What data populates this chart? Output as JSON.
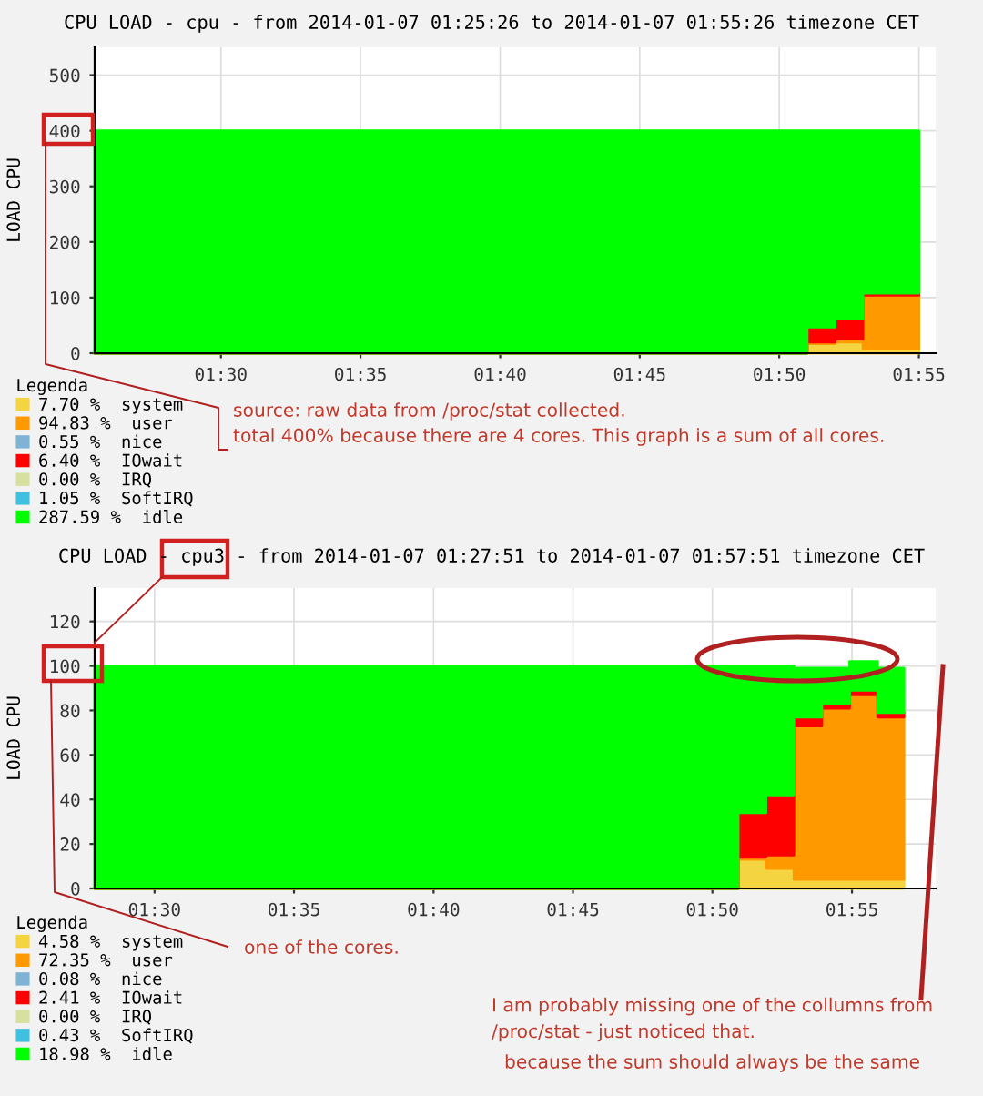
{
  "chart_data": [
    {
      "type": "area",
      "title": "CPU LOAD - cpu - from 2014-01-07 01:25:26 to 2014-01-07 01:55:26 timezone CET",
      "ylabel": "LOAD CPU",
      "legend_title": "Legenda",
      "stacked": true,
      "grid": true,
      "legend": "bottom left",
      "x": [
        1.4246,
        1.85,
        1.8667,
        1.8833,
        1.9167
      ],
      "xlim": [
        1.4246,
        1.9267
      ],
      "xticks": [
        {
          "value": 1.5,
          "label": "01:30"
        },
        {
          "value": 1.5833,
          "label": "01:35"
        },
        {
          "value": 1.6667,
          "label": "01:40"
        },
        {
          "value": 1.75,
          "label": "01:45"
        },
        {
          "value": 1.8333,
          "label": "01:50"
        },
        {
          "value": 1.9167,
          "label": "01:55"
        }
      ],
      "ylim": [
        0,
        550
      ],
      "yticks": [
        0,
        100,
        200,
        300,
        400,
        500
      ],
      "series": [
        {
          "name": "7.70 %  system",
          "color": "#f5d442",
          "values": [
            0,
            17,
            20,
            8,
            8
          ]
        },
        {
          "name": "94.83 %  user",
          "color": "#ff9900",
          "values": [
            0,
            3,
            5,
            96,
            96
          ]
        },
        {
          "name": "0.55 %  nice",
          "color": "#7fb3d5",
          "values": [
            null,
            null,
            null,
            null,
            null
          ]
        },
        {
          "name": "6.40 %  IOwait",
          "color": "#ff0000",
          "values": [
            0,
            27,
            36,
            4,
            4
          ]
        },
        {
          "name": "0.00 %  IRQ",
          "color": "#d8e0a0",
          "values": [
            null,
            null,
            null,
            null,
            null
          ]
        },
        {
          "name": "1.05 %  SoftIRQ",
          "color": "#40c0e0",
          "values": [
            null,
            null,
            null,
            null,
            null
          ]
        },
        {
          "name": "287.59 %  idle",
          "color": "#00ff00",
          "values": [
            400,
            353,
            339,
            292,
            292
          ]
        }
      ],
      "annotations": [
        "source: raw data from /proc/stat collected.",
        "total 400% because there are 4 cores. This graph is a sum of all cores."
      ]
    },
    {
      "type": "area",
      "title": "CPU LOAD - cpu3 - from 2014-01-07 01:27:51 to 2014-01-07 01:57:51 timezone CET",
      "ylabel": "LOAD CPU",
      "legend_title": "Legenda",
      "stacked": true,
      "grid": true,
      "legend": "bottom left",
      "x": [
        1.4642,
        1.8487,
        1.8653,
        1.882,
        1.8987,
        1.9153,
        1.932,
        1.9478
      ],
      "xlim": [
        1.4642,
        1.9667
      ],
      "xticks": [
        {
          "value": 1.5,
          "label": "01:30"
        },
        {
          "value": 1.5833,
          "label": "01:35"
        },
        {
          "value": 1.6667,
          "label": "01:40"
        },
        {
          "value": 1.75,
          "label": "01:45"
        },
        {
          "value": 1.8333,
          "label": "01:50"
        },
        {
          "value": 1.9167,
          "label": "01:55"
        }
      ],
      "ylim": [
        0,
        135
      ],
      "yticks": [
        0,
        20,
        40,
        60,
        80,
        100,
        120
      ],
      "series": [
        {
          "name": "4.58 %  system",
          "color": "#f5d442",
          "values": [
            0,
            13,
            9,
            4,
            4,
            4,
            4,
            4
          ]
        },
        {
          "name": "72.35 %  user",
          "color": "#ff9900",
          "values": [
            0,
            1,
            6,
            69,
            77,
            83,
            73,
            73
          ]
        },
        {
          "name": "0.08 %  nice",
          "color": "#7fb3d5",
          "values": [
            null,
            null,
            null,
            null,
            null,
            null,
            null,
            null
          ]
        },
        {
          "name": "2.41 %  IOwait",
          "color": "#ff0000",
          "values": [
            0,
            20,
            27,
            4,
            2,
            2,
            2,
            2
          ]
        },
        {
          "name": "0.00 %  IRQ",
          "color": "#d8e0a0",
          "values": [
            null,
            null,
            null,
            null,
            null,
            null,
            null,
            null
          ]
        },
        {
          "name": "0.43 %  SoftIRQ",
          "color": "#40c0e0",
          "values": [
            null,
            null,
            null,
            null,
            null,
            null,
            null,
            null
          ]
        },
        {
          "name": "18.98 %  idle",
          "color": "#00ff00",
          "values": [
            100,
            66,
            58,
            22,
            16,
            13,
            20,
            20
          ]
        }
      ],
      "annotations": [
        "one of the cores.",
        "I am probably missing one of the collumns from\n/proc/stat - just noticed that.",
        "because the sum should always be the same"
      ]
    }
  ]
}
